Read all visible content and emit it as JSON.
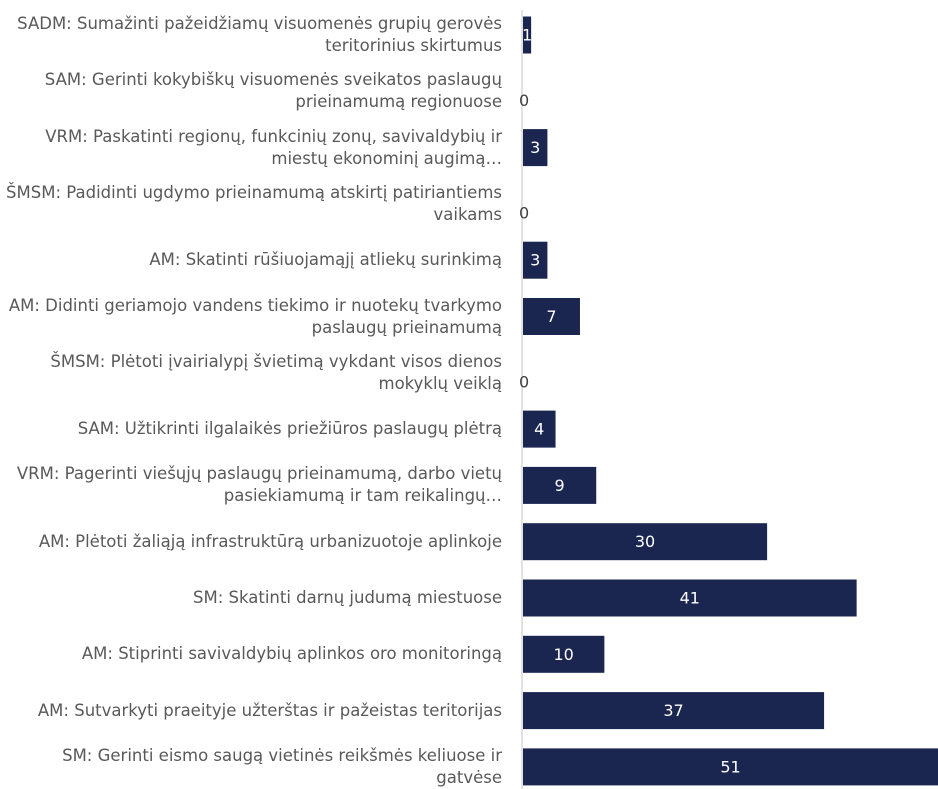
{
  "chart_data": {
    "type": "bar",
    "orientation": "horizontal",
    "color": "#1b2650",
    "categories": [
      "SADM: Sumažinti pažeidžiamų visuomenės grupių gerovės teritorinius skirtumus",
      "SAM: Gerinti kokybiškų visuomenės sveikatos paslaugų prieinamumą regionuose",
      "VRM: Paskatinti regionų, funkcinių zonų, savivaldybių ir miestų ekonominį augimą…",
      "ŠMSM: Padidinti ugdymo prieinamumą atskirtį patiriantiems vaikams",
      "AM: Skatinti rūšiuojamąjį atliekų surinkimą",
      "AM: Didinti geriamojo vandens tiekimo ir nuotekų tvarkymo paslaugų prieinamumą",
      "ŠMSM: Plėtoti įvairialypį švietimą vykdant visos dienos mokyklų veiklą",
      "SAM: Užtikrinti ilgalaikės priežiūros paslaugų plėtrą",
      "VRM: Pagerinti viešųjų paslaugų prieinamumą, darbo vietų pasiekiamumą ir tam reikalingų…",
      "AM: Plėtoti žaliąją infrastruktūrą urbanizuotoje aplinkoje",
      "SM: Skatinti darnų judumą miestuose",
      "AM: Stiprinti savivaldybių aplinkos oro monitoringą",
      "AM: Sutvarkyti praeityje užterštas ir pažeistas teritorijas",
      "SM: Gerinti eismo saugą vietinės reikšmės keliuose ir gatvėse"
    ],
    "values": [
      1,
      0,
      3,
      0,
      3,
      7,
      0,
      4,
      9,
      30,
      41,
      10,
      37,
      51
    ]
  }
}
